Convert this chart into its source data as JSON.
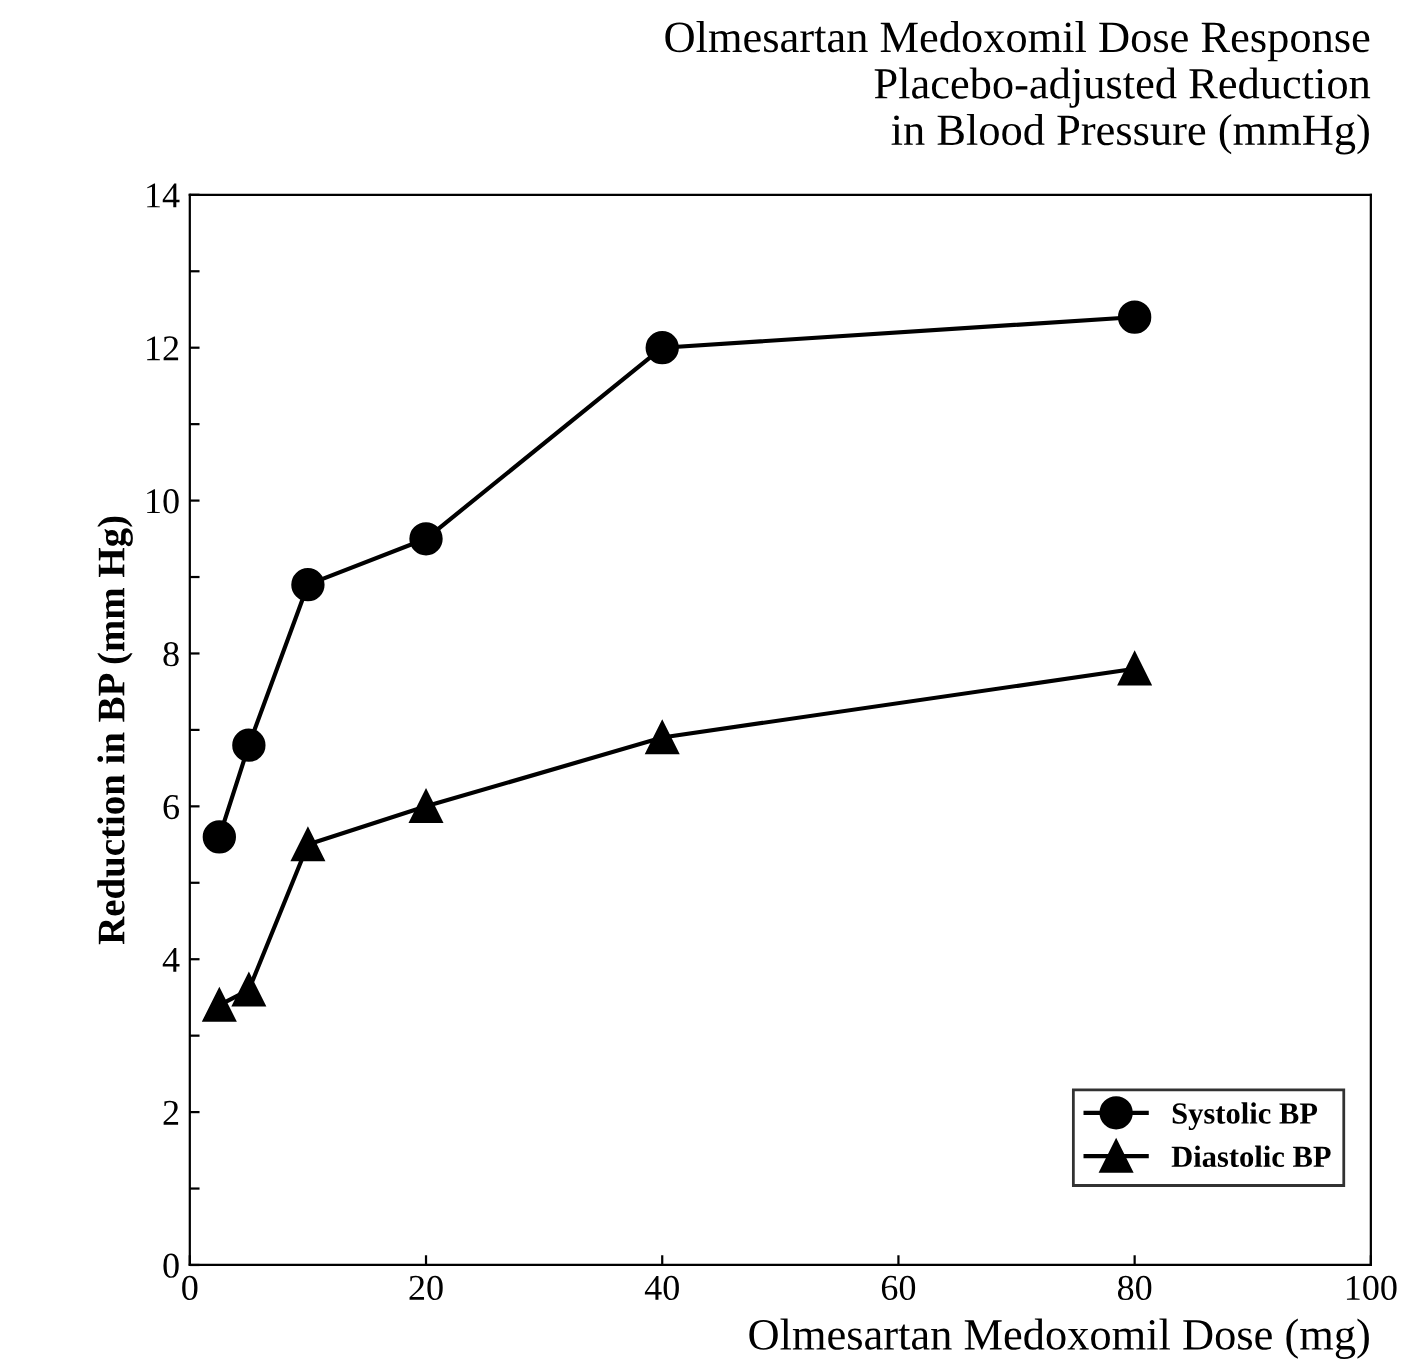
{
  "chart_data": {
    "type": "line",
    "title": "Olmesartan Medoxomil Dose Response\nPlacebo-adjusted Reduction\nin Blood Pressure (mmHg)",
    "xlabel": "Olmesartan Medoxomil Dose (mg)",
    "ylabel": "Reduction in BP (mm Hg)",
    "series": [
      {
        "name": "Systolic BP",
        "color": "#000000",
        "marker": "circle",
        "x": [
          2.5,
          5,
          10,
          20,
          40,
          80
        ],
        "values": [
          5.6,
          6.8,
          8.9,
          9.5,
          12.0,
          12.4
        ]
      },
      {
        "name": "Diastolic BP",
        "color": "#000000",
        "marker": "triangle",
        "x": [
          2.5,
          5,
          10,
          20,
          40,
          80
        ],
        "values": [
          3.4,
          3.6,
          5.5,
          6.0,
          6.9,
          7.8
        ]
      }
    ],
    "xlim": [
      0,
      100
    ],
    "xticks": [
      0,
      20,
      40,
      60,
      80,
      100
    ],
    "ylim": [
      0,
      14
    ],
    "yticks": [
      0,
      {
        "value": 1,
        "label": null
      },
      2,
      {
        "value": 3,
        "label": null
      },
      4,
      {
        "value": 5,
        "label": null
      },
      6,
      {
        "value": 7,
        "label": null
      },
      8,
      {
        "value": 9,
        "label": null
      },
      10,
      {
        "value": 11,
        "label": null
      },
      12,
      {
        "value": 13,
        "label": null
      },
      14
    ],
    "grid": false,
    "legend": "bottom right",
    "line_style": "solid"
  }
}
